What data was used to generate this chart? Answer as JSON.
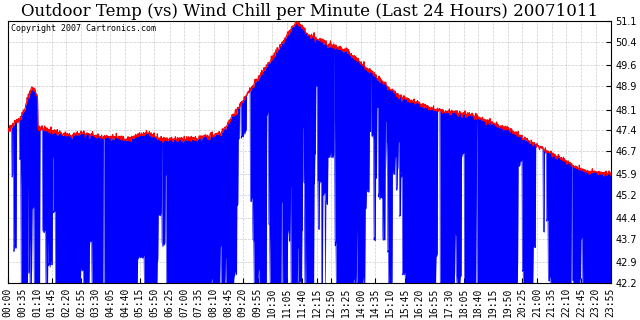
{
  "title": "Outdoor Temp (vs) Wind Chill per Minute (Last 24 Hours) 20071011",
  "copyright_text": "Copyright 2007 Cartronics.com",
  "ylim": [
    42.2,
    51.1
  ],
  "yticks": [
    42.2,
    42.9,
    43.7,
    44.4,
    45.2,
    45.9,
    46.7,
    47.4,
    48.1,
    48.9,
    49.6,
    50.4,
    51.1
  ],
  "x_labels": [
    "00:00",
    "00:35",
    "01:10",
    "01:45",
    "02:20",
    "02:55",
    "03:30",
    "04:05",
    "04:40",
    "05:15",
    "05:50",
    "06:25",
    "07:00",
    "07:35",
    "08:10",
    "08:45",
    "09:20",
    "09:55",
    "10:30",
    "11:05",
    "11:40",
    "12:15",
    "12:50",
    "13:25",
    "14:00",
    "14:35",
    "15:10",
    "15:45",
    "16:20",
    "16:55",
    "17:30",
    "18:05",
    "18:40",
    "19:15",
    "19:50",
    "20:25",
    "21:00",
    "21:35",
    "22:10",
    "22:45",
    "23:20",
    "23:55"
  ],
  "outdoor_color": "#FF0000",
  "wind_chill_color": "#0000FF",
  "background_color": "#FFFFFF",
  "plot_bg_color": "#FFFFFF",
  "grid_color": "#AAAAAA",
  "title_fontsize": 12,
  "tick_fontsize": 7
}
